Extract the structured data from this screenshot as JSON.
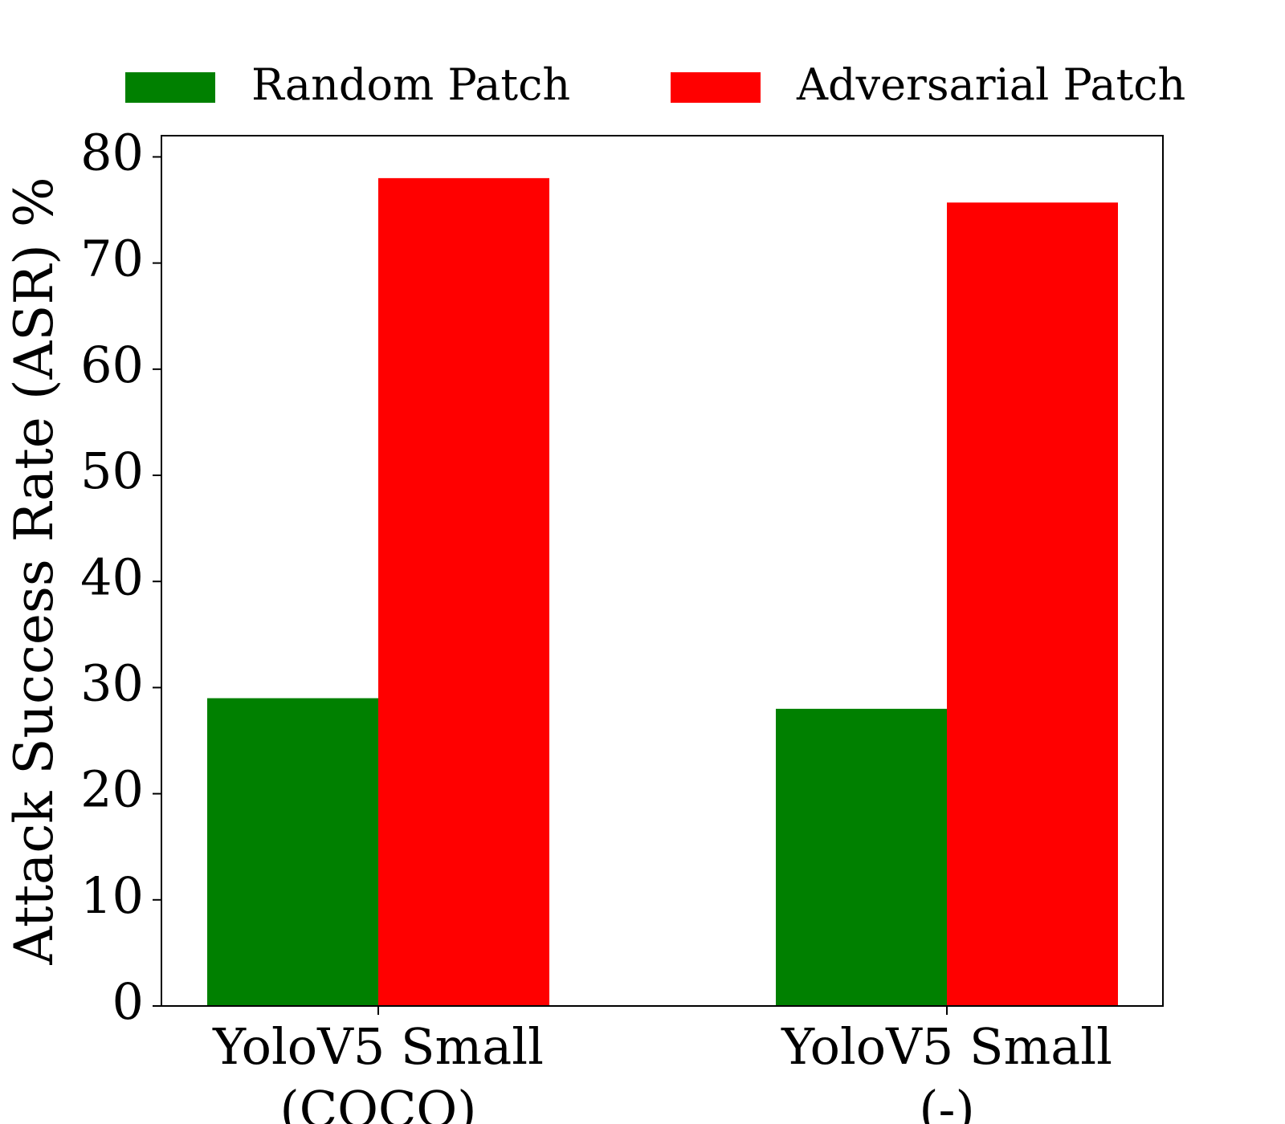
{
  "chart_data": {
    "type": "bar",
    "title": "",
    "xlabel": "",
    "ylabel": "Attack Success Rate (ASR) %",
    "categories": [
      [
        "YoloV5 Small",
        "(COCO)"
      ],
      [
        "YoloV5 Small",
        "(-)"
      ]
    ],
    "series": [
      {
        "name": "Random Patch",
        "color": "#008000",
        "values": [
          29.0,
          28.0
        ]
      },
      {
        "name": "Adversarial Patch",
        "color": "#ff0000",
        "values": [
          78.0,
          75.7
        ]
      }
    ],
    "ylim": [
      0,
      82
    ],
    "yticks": [
      "0",
      "10",
      "20",
      "30",
      "40",
      "50",
      "60",
      "70",
      "80"
    ],
    "grid": false,
    "legend_position": "top"
  }
}
